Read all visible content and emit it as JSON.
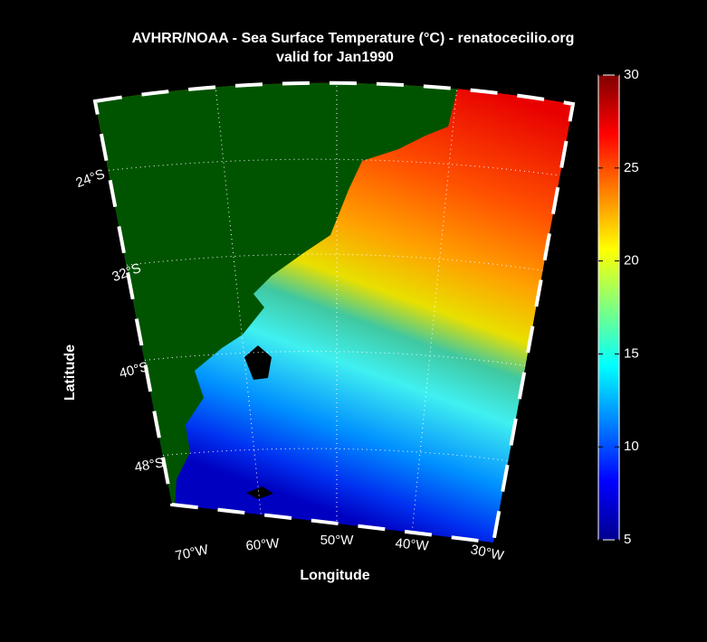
{
  "map": {
    "title": "AVHRR/NOAA - Sea Surface Temperature (°C) - renatocecilio.org",
    "subtitle": "valid for Jan1990",
    "xlabel": "Longitude",
    "ylabel": "Latitude",
    "lat_labels": [
      "24°S",
      "32°S",
      "40°S",
      "48°S"
    ],
    "lon_labels": [
      "70°W",
      "60°W",
      "50°W",
      "40°W",
      "30°W"
    ],
    "colorbar": {
      "lim": [
        5,
        30
      ],
      "ticks": [
        5,
        10,
        15,
        20,
        25,
        30
      ]
    }
  }
}
